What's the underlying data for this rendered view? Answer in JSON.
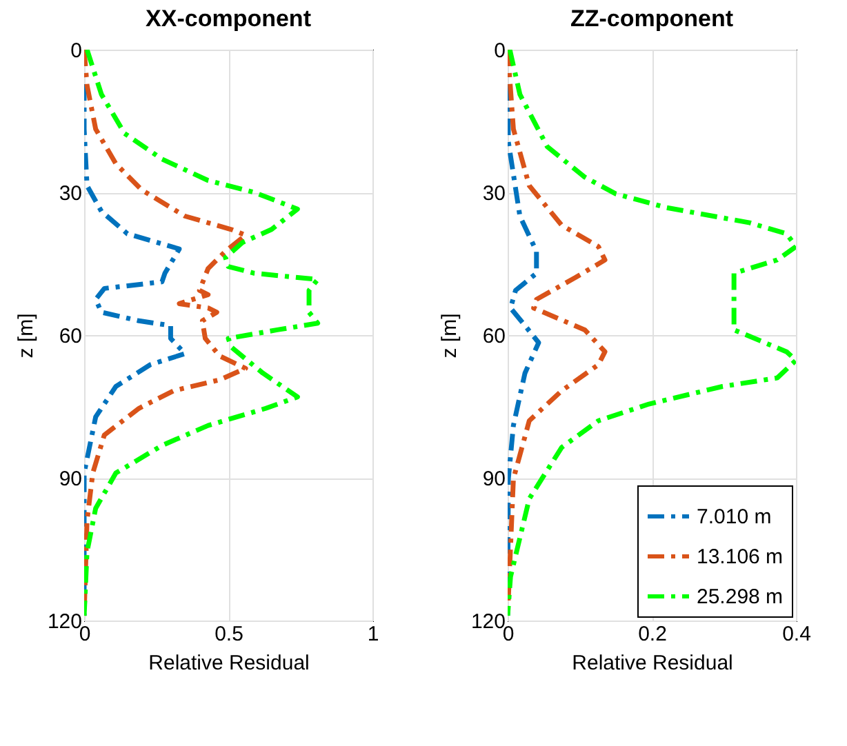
{
  "chart_data": [
    {
      "type": "line",
      "title": "XX-component",
      "xlabel": "Relative Residual",
      "ylabel": "z [m]",
      "xlim": [
        0,
        1
      ],
      "xticks": [
        0,
        0.5,
        1
      ],
      "ylim": [
        120,
        0
      ],
      "yticks": [
        0,
        30,
        60,
        90,
        120
      ],
      "grid": true,
      "line_style": "dashdot",
      "legend": false,
      "series": [
        {
          "color": "#0072bd",
          "x": [
            0,
            0,
            0.01,
            0.06,
            0.15,
            0.33,
            0.28,
            0.27,
            0.07,
            0.04,
            0.06,
            0.19,
            0.3,
            0.3,
            0.35,
            0.23,
            0.11,
            0.04,
            0,
            0
          ],
          "values": [
            0,
            16.7,
            28.6,
            34,
            38.7,
            41.9,
            47,
            48.8,
            50.2,
            52.5,
            55.2,
            57,
            58,
            60.7,
            63.9,
            66.2,
            70.8,
            77.2,
            89,
            119
          ]
        },
        {
          "color": "#d95319",
          "x": [
            0,
            0.01,
            0.04,
            0.11,
            0.2,
            0.35,
            0.51,
            0.56,
            0.49,
            0.43,
            0.4,
            0.43,
            0.33,
            0.43,
            0.46,
            0.41,
            0.42,
            0.47,
            0.56,
            0.47,
            0.31,
            0.19,
            0.07,
            0.03,
            0.01,
            0
          ],
          "values": [
            0,
            7.5,
            16.7,
            24,
            29.5,
            35,
            37.8,
            39,
            42.4,
            46,
            50.6,
            51.5,
            53.4,
            54.3,
            55.2,
            57,
            60.7,
            64.4,
            67,
            69.4,
            71.7,
            75.4,
            81,
            89,
            99,
            119
          ]
        },
        {
          "color": "#00ff00",
          "x": [
            0.01,
            0.06,
            0.14,
            0.27,
            0.43,
            0.59,
            0.74,
            0.65,
            0.55,
            0.49,
            0.5,
            0.59,
            0.81,
            0.78,
            0.78,
            0.81,
            0.67,
            0.5,
            0.51,
            0.62,
            0.74,
            0.63,
            0.43,
            0.27,
            0.11,
            0.04,
            0.01,
            0
          ],
          "values": [
            0,
            9.4,
            17.6,
            23,
            27.5,
            30,
            33.5,
            37.8,
            40.5,
            43.7,
            45.6,
            47,
            48.3,
            50.6,
            55.2,
            57.5,
            58.9,
            60.7,
            62.5,
            68,
            73,
            75.4,
            79,
            83.2,
            89,
            96.4,
            105.6,
            119
          ]
        }
      ]
    },
    {
      "type": "line",
      "title": "ZZ-component",
      "xlabel": "Relative Residual",
      "ylabel": "z [m]",
      "xlim": [
        0,
        0.4
      ],
      "xticks": [
        0,
        0.2,
        0.4
      ],
      "ylim": [
        120,
        0
      ],
      "yticks": [
        0,
        30,
        60,
        90,
        120
      ],
      "grid": true,
      "line_style": "dashdot",
      "legend": "bottom right",
      "series": [
        {
          "name": "7.010 m",
          "color": "#0072bd",
          "x": [
            0,
            0.001,
            0.017,
            0.04,
            0.04,
            0.011,
            0.004,
            0.024,
            0.043,
            0.024,
            0.008,
            0.001,
            0
          ],
          "values": [
            0,
            19.4,
            35,
            42.4,
            47,
            50.6,
            54.3,
            58,
            61.6,
            68,
            79,
            90.2,
            119
          ]
        },
        {
          "name": "13.106 m",
          "color": "#d95319",
          "x": [
            0,
            0.008,
            0.03,
            0.075,
            0.126,
            0.135,
            0.094,
            0.04,
            0.036,
            0.107,
            0.135,
            0.126,
            0.075,
            0.03,
            0.008,
            0
          ],
          "values": [
            0,
            16.7,
            28.6,
            36.9,
            41.4,
            44.2,
            47.9,
            52.5,
            54.3,
            58.9,
            63.5,
            66.2,
            71.7,
            78,
            90.2,
            119
          ]
        },
        {
          "name": "25.298 m",
          "color": "#00ff00",
          "x": [
            0.003,
            0.017,
            0.055,
            0.107,
            0.15,
            0.22,
            0.336,
            0.387,
            0.4,
            0.374,
            0.314,
            0.314,
            0.387,
            0.4,
            0.374,
            0.298,
            0.196,
            0.126,
            0.075,
            0.03,
            0.004,
            0
          ],
          "values": [
            0,
            9.4,
            20.4,
            26.8,
            30.3,
            33.2,
            36.4,
            38.7,
            41.4,
            44.2,
            47,
            58.9,
            63.5,
            65.3,
            69,
            70.8,
            74.5,
            78,
            83.6,
            94.4,
            110.8,
            119
          ]
        }
      ]
    }
  ]
}
